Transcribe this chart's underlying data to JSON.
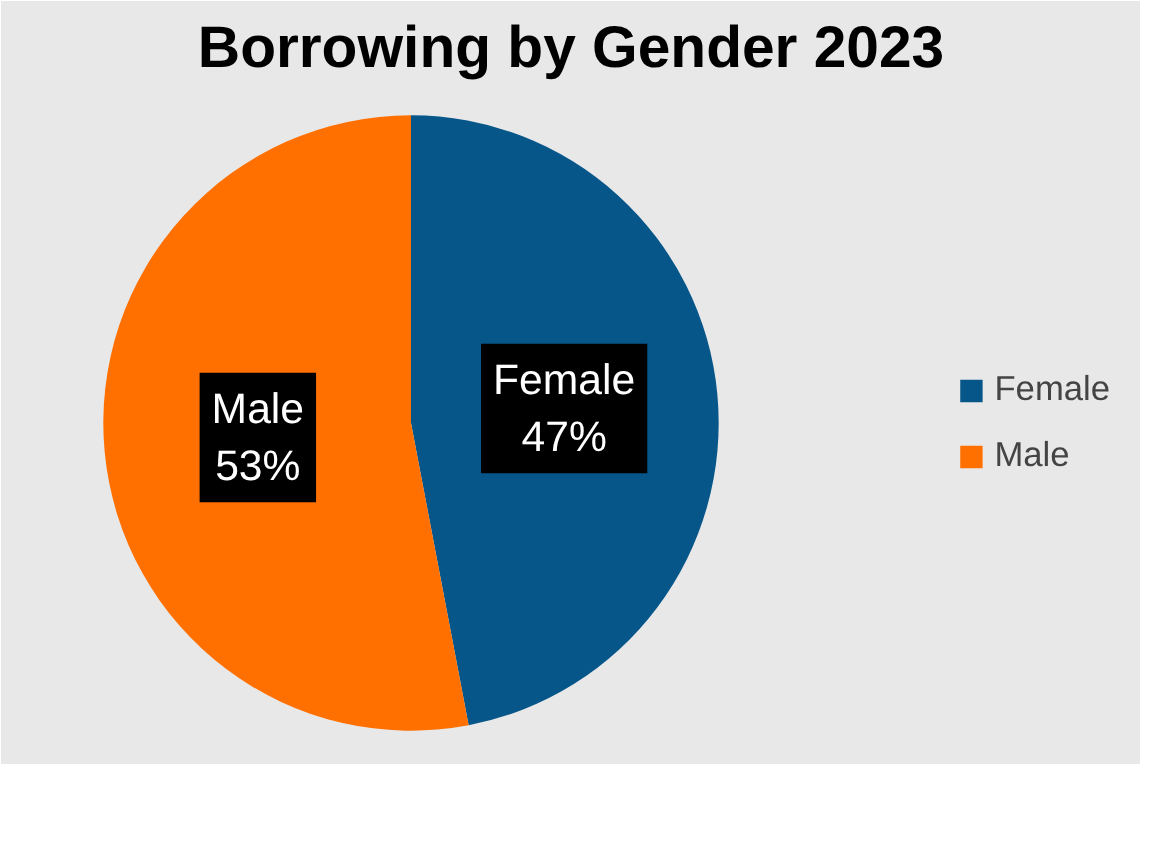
{
  "chart_data": {
    "type": "pie",
    "title": "Borrowing by Gender 2023",
    "categories": [
      "Female",
      "Male"
    ],
    "values": [
      47,
      53
    ],
    "colors": [
      "#06568a",
      "#ff7000"
    ],
    "value_labels": [
      "47%",
      "53%"
    ],
    "legend": "right"
  }
}
